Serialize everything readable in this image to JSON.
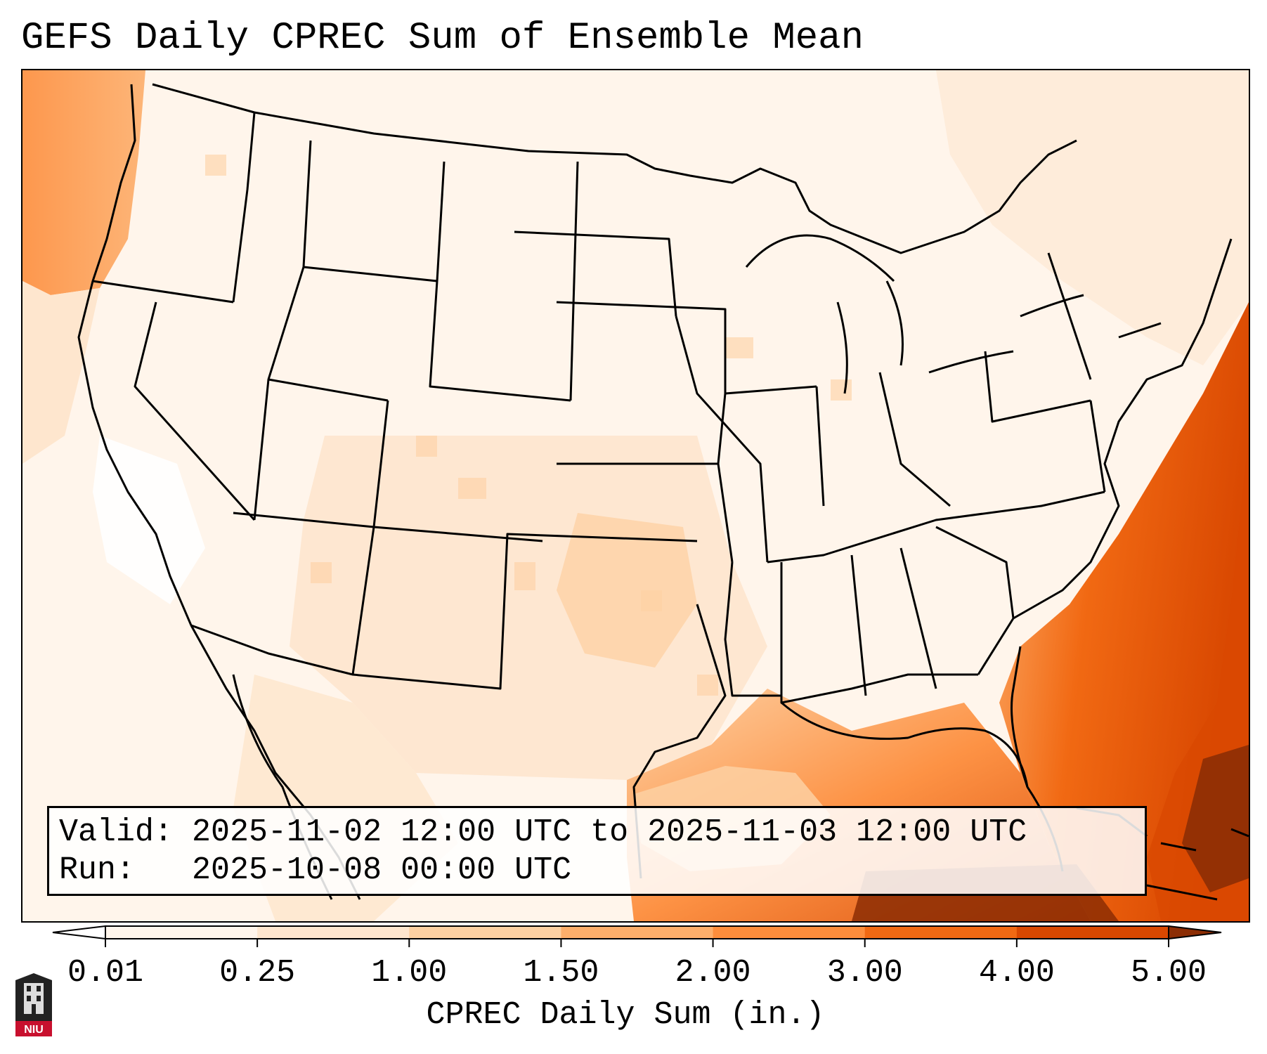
{
  "title": "GEFS Daily CPREC Sum of Ensemble Mean",
  "valid_line": "Valid: 2025-11-02 12:00 UTC to 2025-11-03 12:00 UTC",
  "run_line": "Run:   2025-10-08 00:00 UTC",
  "colorbar": {
    "label": "CPREC Daily Sum (in.)",
    "ticks": [
      "0.01",
      "0.25",
      "1.00",
      "1.50",
      "2.00",
      "3.00",
      "4.00",
      "5.00"
    ],
    "colors": [
      "#fff5eb",
      "#fee6ce",
      "#fdd0a2",
      "#fdae6b",
      "#fd8d3c",
      "#f16913",
      "#d94801",
      "#8c2d04"
    ],
    "extend": "both"
  },
  "logo": {
    "text": "NIU",
    "icon": "university-tower-logo",
    "color": "#c8102e"
  },
  "map": {
    "projection": "lambert-conformal",
    "region": "continental-us",
    "field_colors": {
      "lowest": "#fff5eb",
      "low": "#fee6ce",
      "moderate": "#fdd0a2",
      "medium": "#fdae6b",
      "high": "#fd8d3c",
      "higher": "#f16913",
      "very_high": "#d94801",
      "max": "#8c2d04"
    }
  }
}
